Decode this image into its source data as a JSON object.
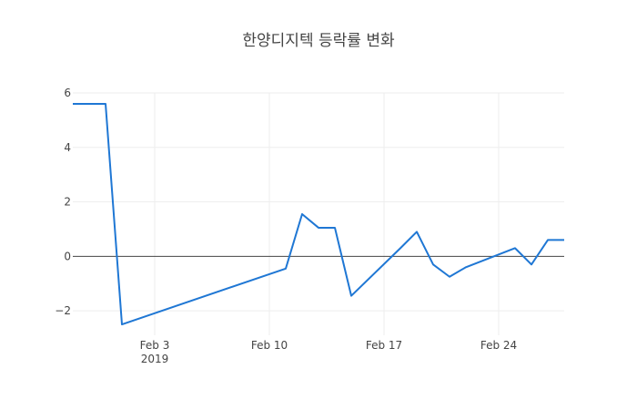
{
  "chart_data": {
    "type": "line",
    "title": "한양디지텍 등락률 변화",
    "xlabel": "",
    "ylabel": "",
    "x": [
      "2019-01-29",
      "2019-01-30",
      "2019-01-31",
      "2019-02-01",
      "2019-02-11",
      "2019-02-12",
      "2019-02-13",
      "2019-02-14",
      "2019-02-15",
      "2019-02-18",
      "2019-02-19",
      "2019-02-20",
      "2019-02-21",
      "2019-02-22",
      "2019-02-25",
      "2019-02-26",
      "2019-02-27",
      "2019-02-28"
    ],
    "series": [
      {
        "values": [
          5.6,
          5.6,
          5.6,
          -2.5,
          -0.45,
          1.55,
          1.05,
          1.05,
          -1.45,
          0.3,
          0.9,
          -0.3,
          -0.75,
          -0.4,
          0.3,
          -0.3,
          0.6,
          0.6
        ],
        "color": "#1f77d4"
      }
    ],
    "xlim": [
      "2019-01-29",
      "2019-02-28"
    ],
    "ylim": [
      -2.9,
      6.0
    ],
    "x_ticks": [
      {
        "date": "2019-02-03",
        "label": "Feb 3",
        "sublabel": "2019"
      },
      {
        "date": "2019-02-10",
        "label": "Feb 10",
        "sublabel": ""
      },
      {
        "date": "2019-02-17",
        "label": "Feb 17",
        "sublabel": ""
      },
      {
        "date": "2019-02-24",
        "label": "Feb 24",
        "sublabel": ""
      }
    ],
    "y_ticks": [
      {
        "value": -2,
        "label": "−2"
      },
      {
        "value": 0,
        "label": "0"
      },
      {
        "value": 2,
        "label": "2"
      },
      {
        "value": 4,
        "label": "4"
      },
      {
        "value": 6,
        "label": "6"
      }
    ],
    "grid": true,
    "zero_line": true,
    "colors": {
      "line": "#1f77d4",
      "grid": "#eeeeee",
      "zero": "#444444",
      "text": "#444444"
    }
  }
}
